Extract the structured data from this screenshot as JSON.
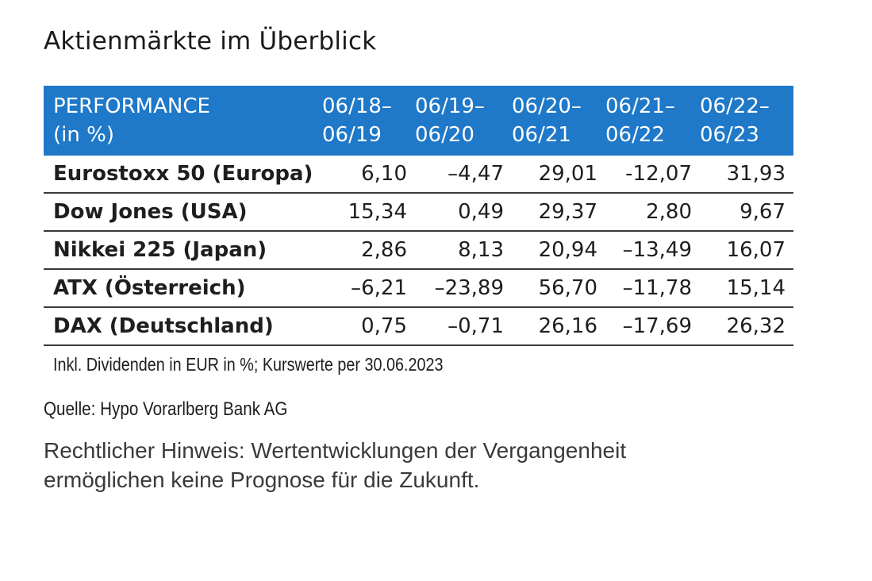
{
  "title": "Aktienmärkte im Überblick",
  "table": {
    "header": {
      "label_line1": "PERFORMANCE",
      "label_line2": "(in %)",
      "periods": [
        {
          "line1": "06/18–",
          "line2": "06/19"
        },
        {
          "line1": "06/19–",
          "line2": "06/20"
        },
        {
          "line1": "06/20–",
          "line2": "06/21"
        },
        {
          "line1": "06/21–",
          "line2": "06/22"
        },
        {
          "line1": "06/22–",
          "line2": "06/23"
        }
      ]
    },
    "rows": [
      {
        "name": "Eurostoxx 50 (Europa)",
        "values": [
          "6,10",
          "–4,47",
          "29,01",
          "-12,07",
          "31,93"
        ]
      },
      {
        "name": "Dow Jones (USA)",
        "values": [
          "15,34",
          "0,49",
          "29,37",
          "2,80",
          "9,67"
        ]
      },
      {
        "name": "Nikkei 225 (Japan)",
        "values": [
          "2,86",
          "8,13",
          "20,94",
          "–13,49",
          "16,07"
        ]
      },
      {
        "name": "ATX (Österreich)",
        "values": [
          "–6,21",
          "–23,89",
          "56,70",
          "–11,78",
          "15,14"
        ]
      },
      {
        "name": "DAX (Deutschland)",
        "values": [
          "0,75",
          "–0,71",
          "26,16",
          "–17,69",
          "26,32"
        ]
      }
    ]
  },
  "note": "Inkl. Dividenden in EUR in %; Kurswerte per 30.06.2023",
  "source": "Quelle: Hypo Vorarlberg Bank AG",
  "legal": {
    "line1": "Rechtlicher Hinweis: Wertentwicklungen der Vergangenheit",
    "line2": "ermöglichen keine Prognose für die Zukunft."
  },
  "colors": {
    "header_background": "#1f78c8",
    "header_text": "#ffffff",
    "row_divider": "#3a3a3a"
  }
}
